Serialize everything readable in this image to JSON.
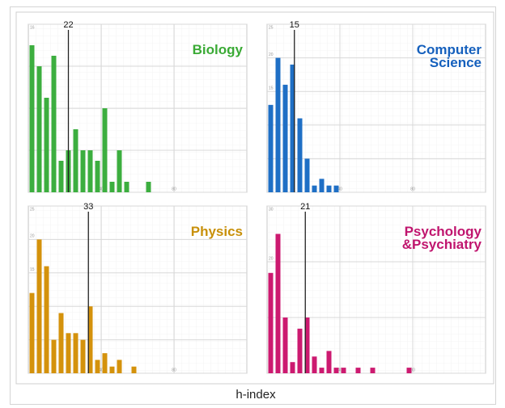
{
  "caption": "h-index",
  "chart_data": [
    {
      "type": "histogram",
      "title": "Biology",
      "color": "#3cae3f",
      "title_color": "#3aaa35",
      "bins": [
        0,
        4,
        8,
        12,
        16,
        20,
        24,
        28,
        32,
        36,
        40,
        44,
        48,
        52,
        56,
        60,
        64,
        68
      ],
      "values": [
        14,
        12,
        9,
        13,
        3,
        4,
        6,
        4,
        4,
        3,
        8,
        1,
        4,
        1,
        0,
        0,
        1
      ],
      "reference_line": 22,
      "xlim": [
        0,
        120
      ],
      "xticks": [
        40,
        80
      ],
      "ylim": [
        0,
        16
      ],
      "yticks": [
        0,
        4,
        8,
        12,
        16
      ],
      "grid": true
    },
    {
      "type": "histogram",
      "title": "Computer Science",
      "color": "#1f6fc5",
      "title_color": "#1560bd",
      "bins": [
        0,
        4,
        8,
        12,
        16,
        20,
        24,
        28,
        32,
        36,
        40
      ],
      "values": [
        13,
        20,
        16,
        19,
        11,
        5,
        1,
        2,
        1,
        1
      ],
      "reference_line": 15,
      "xlim": [
        0,
        120
      ],
      "xticks": [
        40,
        80
      ],
      "ylim": [
        0,
        25
      ],
      "yticks": [
        0,
        5,
        10,
        15,
        20,
        25
      ],
      "grid": true
    },
    {
      "type": "histogram",
      "title": "Physics",
      "color": "#d4920c",
      "title_color": "#c8900a",
      "bins": [
        0,
        4,
        8,
        12,
        16,
        20,
        24,
        28,
        32,
        36,
        40,
        44,
        48,
        52,
        56,
        60
      ],
      "values": [
        12,
        20,
        16,
        5,
        9,
        6,
        6,
        5,
        10,
        2,
        3,
        1,
        2,
        0,
        1
      ],
      "reference_line": 33,
      "xlim": [
        0,
        120
      ],
      "xticks": [
        40,
        80
      ],
      "ylim": [
        0,
        25
      ],
      "yticks": [
        0,
        5,
        10,
        15,
        20,
        25
      ],
      "grid": true
    },
    {
      "type": "histogram",
      "title": "Psychology &Psychiatry",
      "color": "#cc1a70",
      "title_color": "#c0156e",
      "bins": [
        0,
        4,
        8,
        12,
        16,
        20,
        24,
        28,
        32,
        36,
        40,
        44,
        48,
        52,
        56,
        60,
        64,
        68,
        72,
        76,
        80
      ],
      "values": [
        18,
        25,
        10,
        2,
        8,
        10,
        3,
        1,
        4,
        1,
        1,
        0,
        1,
        0,
        1,
        0,
        0,
        0,
        0,
        1
      ],
      "reference_line": 21,
      "xlim": [
        0,
        120
      ],
      "xticks": [
        40,
        80
      ],
      "ylim": [
        0,
        30
      ],
      "yticks": [
        0,
        10,
        20,
        30
      ],
      "grid": true
    }
  ]
}
